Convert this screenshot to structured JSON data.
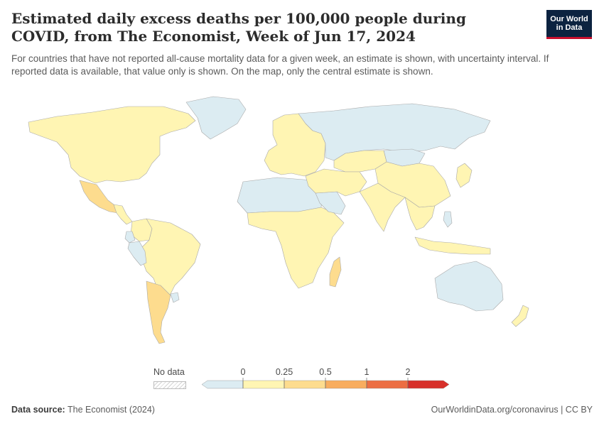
{
  "header": {
    "title": "Estimated daily excess deaths per 100,000 people during COVID, from The Economist, Week of Jun 17, 2024",
    "subtitle": "For countries that have not reported all-cause mortality data for a given week, an estimate is shown, with uncertainty interval. If reported data is available, that value only is shown. On the map, only the central estimate is shown."
  },
  "logo": {
    "line1": "Our World",
    "line2": "in Data"
  },
  "legend": {
    "no_data_label": "No data",
    "ticks": [
      "0",
      "0.25",
      "0.5",
      "1",
      "2"
    ],
    "colors": [
      "#dcecf2",
      "#fff5b3",
      "#fddc8e",
      "#f8ad5e",
      "#ec6e43",
      "#d7302a"
    ]
  },
  "footer": {
    "source_label": "Data source:",
    "source_text": "The Economist (2024)",
    "right_text": "OurWorldinData.org/coronavirus | CC BY"
  },
  "map_colors": {
    "below_zero": "#dcecf2",
    "zero_to_0_25": "#fff5b3",
    "0_25_to_0_5": "#fddc8e",
    "no_data": "#e5e5e5"
  },
  "regions": [
    {
      "name": "North America",
      "class": "zero_to_0_25"
    },
    {
      "name": "Greenland",
      "class": "below_zero"
    },
    {
      "name": "Mexico",
      "class": "0_25_to_0_5"
    },
    {
      "name": "Central America",
      "class": "zero_to_0_25"
    },
    {
      "name": "Argentina",
      "class": "0_25_to_0_5"
    },
    {
      "name": "Ecuador",
      "class": "below_zero"
    },
    {
      "name": "Peru",
      "class": "below_zero"
    },
    {
      "name": "Colombia",
      "class": "zero_to_0_25"
    },
    {
      "name": "South America",
      "class": "zero_to_0_25"
    },
    {
      "name": "Uruguay",
      "class": "below_zero"
    },
    {
      "name": "Russia",
      "class": "below_zero"
    },
    {
      "name": "Europe",
      "class": "zero_to_0_25"
    },
    {
      "name": "North Africa",
      "class": "below_zero"
    },
    {
      "name": "Sub-Saharan Africa",
      "class": "zero_to_0_25"
    },
    {
      "name": "Madagascar",
      "class": "0_25_to_0_5"
    },
    {
      "name": "Saudi Arabia",
      "class": "below_zero"
    },
    {
      "name": "Middle East",
      "class": "zero_to_0_25"
    },
    {
      "name": "Central Asia",
      "class": "zero_to_0_25"
    },
    {
      "name": "India",
      "class": "zero_to_0_25"
    },
    {
      "name": "China",
      "class": "zero_to_0_25"
    },
    {
      "name": "Mongolia",
      "class": "below_zero"
    },
    {
      "name": "Japan",
      "class": "zero_to_0_25"
    },
    {
      "name": "Southeast Asia",
      "class": "zero_to_0_25"
    },
    {
      "name": "Indonesia",
      "class": "zero_to_0_25"
    },
    {
      "name": "Australia",
      "class": "below_zero"
    },
    {
      "name": "New Zealand",
      "class": "zero_to_0_25"
    },
    {
      "name": "Philippines",
      "class": "below_zero"
    }
  ]
}
